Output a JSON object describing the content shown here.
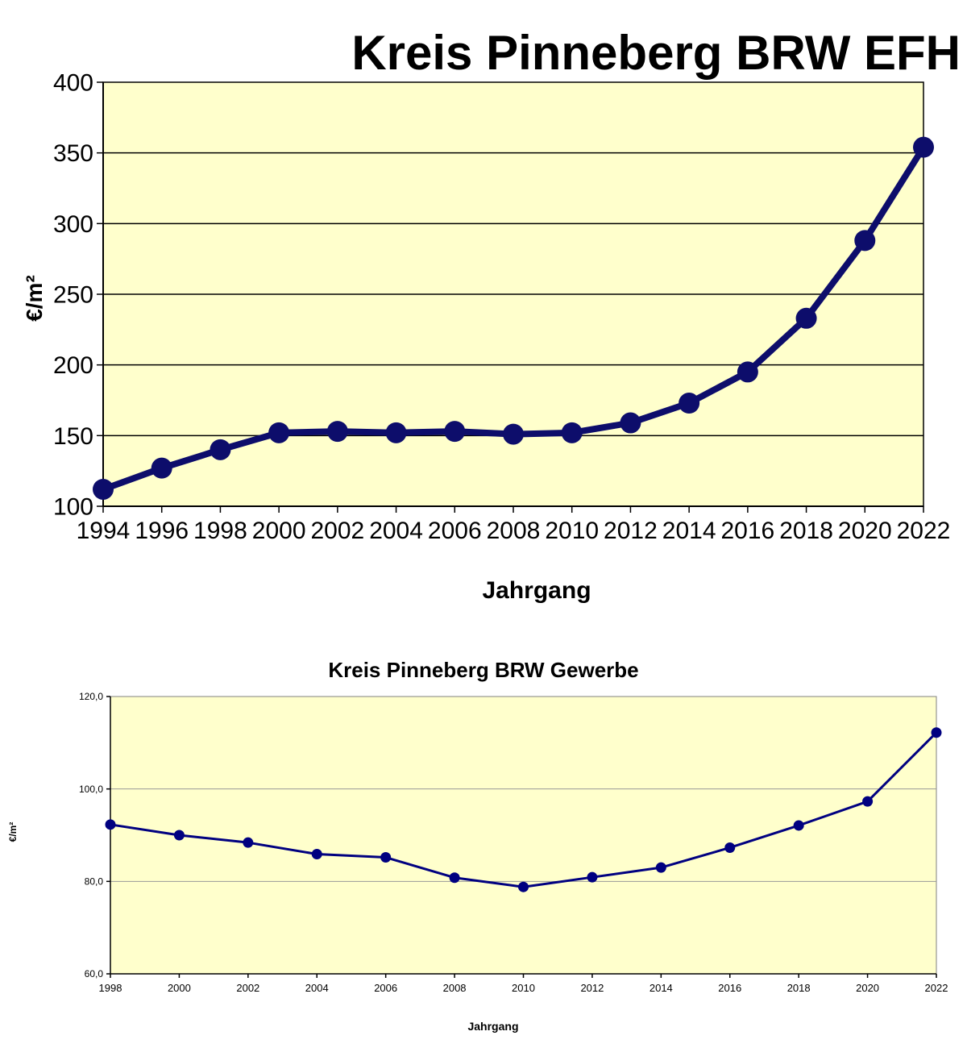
{
  "chart_data": [
    {
      "type": "line",
      "title": "Kreis Pinneberg BRW EFH",
      "xlabel": "Jahrgang",
      "ylabel": "€/m²",
      "ylim": [
        100,
        400
      ],
      "yticks": [
        "100",
        "150",
        "200",
        "250",
        "300",
        "350",
        "400"
      ],
      "x": [
        "1994",
        "1996",
        "1998",
        "2000",
        "2002",
        "2004",
        "2006",
        "2008",
        "2010",
        "2012",
        "2014",
        "2016",
        "2018",
        "2020",
        "2022"
      ],
      "values": [
        112,
        127,
        140,
        152,
        153,
        152,
        153,
        151,
        152,
        159,
        173,
        195,
        233,
        288,
        354
      ],
      "grid": true,
      "colors": {
        "line": "#0d0d6b",
        "plot_bg": "#ffffcc",
        "grid": "#000000"
      }
    },
    {
      "type": "line",
      "title": "Kreis Pinneberg BRW Gewerbe",
      "xlabel": "Jahrgang",
      "ylabel": "€/m²",
      "ylim": [
        60,
        120
      ],
      "yticks": [
        "60,0",
        "80,0",
        "100,0",
        "120,0"
      ],
      "x": [
        "1998",
        "2000",
        "2002",
        "2004",
        "2006",
        "2008",
        "2010",
        "2012",
        "2014",
        "2016",
        "2018",
        "2020",
        "2022"
      ],
      "values": [
        92.3,
        90.0,
        88.4,
        85.9,
        85.2,
        80.8,
        78.8,
        80.9,
        83.0,
        87.3,
        92.1,
        97.3,
        112.2
      ],
      "grid": true,
      "colors": {
        "line": "#000080",
        "plot_bg": "#ffffcc",
        "grid": "#999999"
      }
    }
  ]
}
